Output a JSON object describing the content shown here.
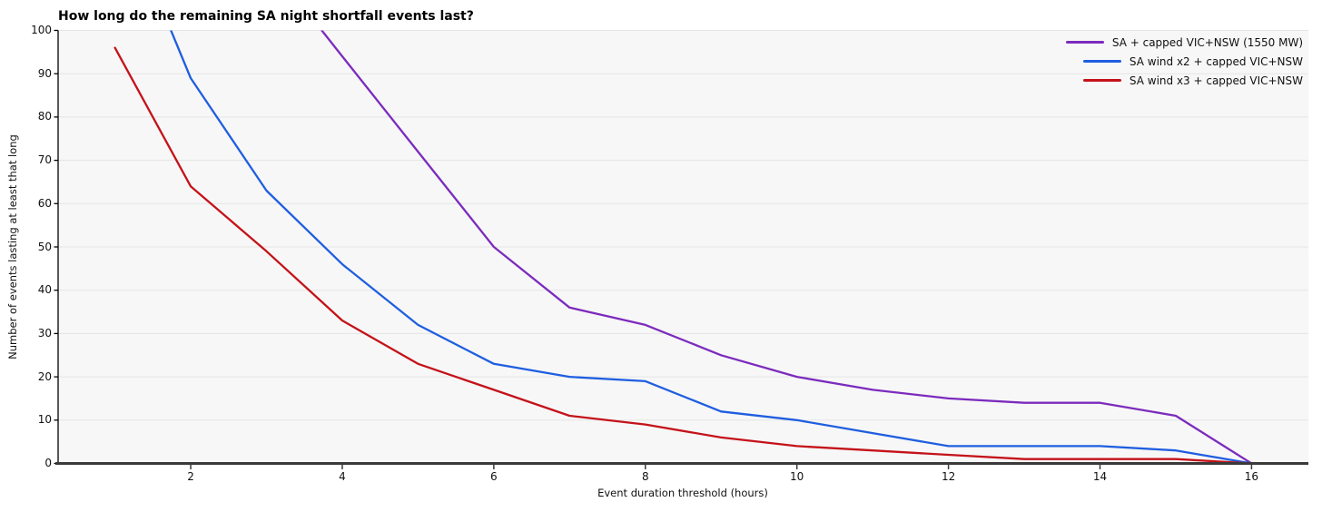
{
  "figure": {
    "background": "#ffffff",
    "plot_background": "#f7f7f7",
    "gridline_color": "#e5e5e5",
    "left_spine_color": "#000000",
    "bottom_spine_color": "#3a3a3a"
  },
  "chart_data": {
    "type": "line",
    "title": "How long do the remaining SA night shortfall events last?",
    "xlabel": "Event duration threshold (hours)",
    "ylabel": "Number of events lasting at least that long",
    "xlim": [
      0.25,
      16.75
    ],
    "ylim": [
      0,
      100
    ],
    "x_ticks": [
      2,
      4,
      6,
      8,
      10,
      12,
      14,
      16
    ],
    "y_ticks": [
      0,
      10,
      20,
      30,
      40,
      50,
      60,
      70,
      80,
      90,
      100
    ],
    "grid": "horizontal gridlines on",
    "legend_position": "upper right, no frame",
    "series": [
      {
        "name": "SA + capped VIC+NSW (1550 MW)",
        "color": "#7c2bbd",
        "clip_entry_x": 3.73,
        "x": [
          4,
          5,
          6,
          7,
          8,
          9,
          10,
          11,
          12,
          13,
          14,
          15,
          16
        ],
        "values": [
          94,
          72,
          50,
          36,
          32,
          25,
          20,
          17,
          15,
          14,
          14,
          11,
          0
        ]
      },
      {
        "name": "SA wind x2 + capped VIC+NSW",
        "color": "#1f5ee0",
        "clip_entry_x": 1.74,
        "x": [
          2,
          3,
          4,
          5,
          6,
          7,
          8,
          9,
          10,
          11,
          12,
          13,
          14,
          15,
          16
        ],
        "values": [
          89,
          63,
          46,
          32,
          23,
          20,
          19,
          12,
          10,
          7,
          4,
          4,
          4,
          3,
          0
        ]
      },
      {
        "name": "SA wind x3 + capped VIC+NSW",
        "color": "#c41219",
        "x": [
          1,
          2,
          3,
          4,
          5,
          6,
          7,
          8,
          9,
          10,
          11,
          12,
          13,
          14,
          15,
          16
        ],
        "values": [
          96,
          64,
          49,
          33,
          23,
          17,
          11,
          9,
          6,
          4,
          3,
          2,
          1,
          1,
          1,
          0
        ]
      }
    ],
    "clip_note": "The purple and blue curves exceed 100 events at short durations; they are clipped at the top of the axes (y=100), entering the plot at x≈3.7 and x≈1.7 respectively."
  }
}
